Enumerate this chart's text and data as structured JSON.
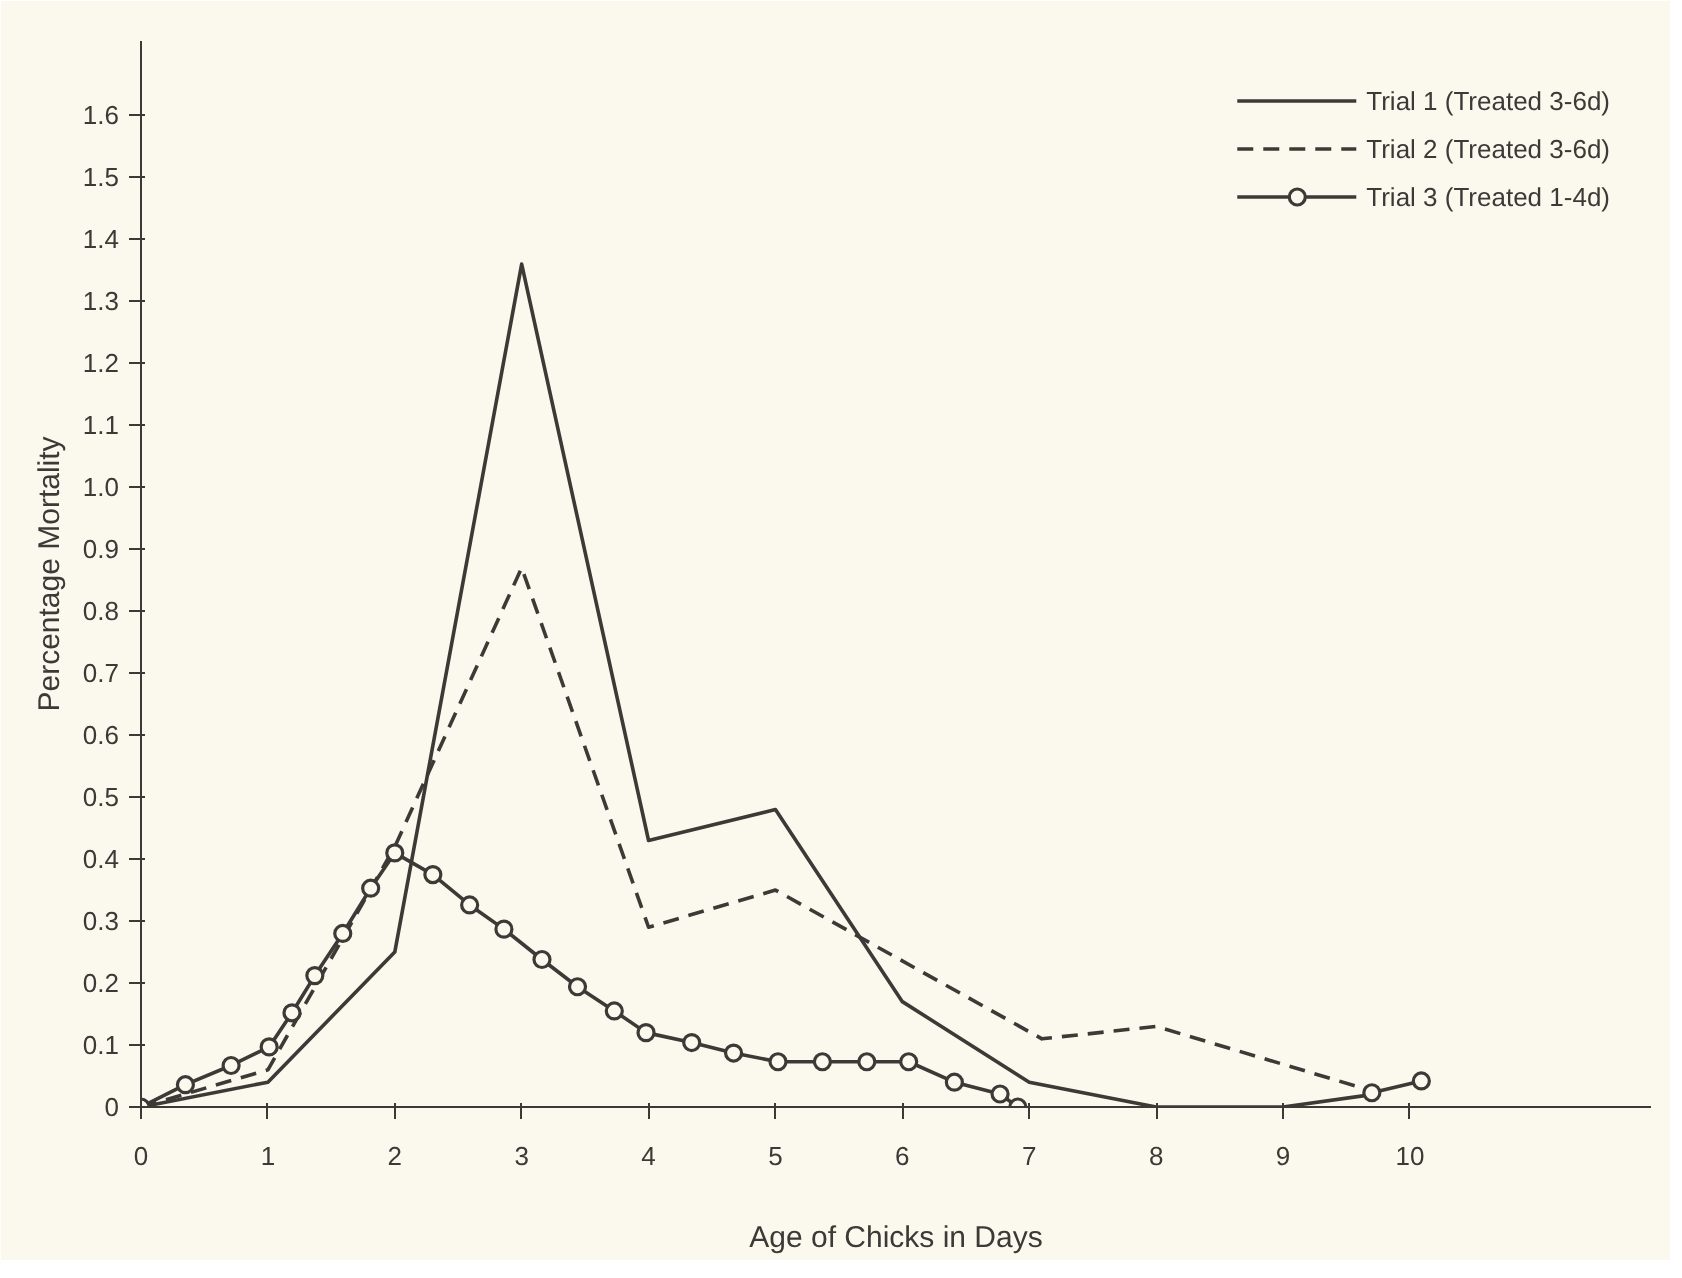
{
  "chart_data": {
    "type": "line",
    "xlabel": "Age of Chicks in Days",
    "ylabel": "Percentage Mortality",
    "xlim": [
      0,
      11.9
    ],
    "ylim": [
      0,
      1.72
    ],
    "xticks": [
      0,
      1,
      2,
      3,
      4,
      5,
      6,
      7,
      8,
      9,
      10
    ],
    "yticks": [
      0,
      0.1,
      0.2,
      0.3,
      0.4,
      0.5,
      0.6,
      0.7,
      0.8,
      0.9,
      {
        "value": 1.0,
        "label": "1.0"
      },
      1.1,
      1.2,
      1.3,
      1.4,
      1.5,
      1.6
    ],
    "grid": false,
    "legend": "top right",
    "series": [
      {
        "name": "Trial 1 (Treated 3-6d)",
        "color": "#3c3a36",
        "line_style": "solid",
        "marker": "none",
        "x": [
          0,
          1,
          2,
          3,
          4,
          5,
          6,
          7,
          8,
          9,
          9.7
        ],
        "values": [
          0,
          0.04,
          0.25,
          1.36,
          0.43,
          0.48,
          0.17,
          0.04,
          0,
          0,
          0.02
        ]
      },
      {
        "name": "Trial 2 (Treated 3-6d)",
        "color": "#3c3a36",
        "line_style": "dashed",
        "marker": "none",
        "x": [
          0,
          1,
          2,
          3,
          4,
          5,
          7.1,
          8,
          9.8
        ],
        "values": [
          0,
          0.06,
          0.42,
          0.87,
          0.29,
          0.35,
          0.11,
          0.13,
          0.02
        ]
      },
      {
        "name": "Trial 3 (Treated 1-4d)",
        "color": "#3c3a36",
        "line_style": "solid",
        "marker": "circle",
        "x": [
          0,
          0.35,
          0.71,
          1.01,
          1.19,
          1.37,
          1.59,
          1.81,
          2.0,
          2.3,
          2.59,
          2.86,
          3.16,
          3.44,
          3.73,
          3.98,
          4.34,
          4.67,
          5.02,
          5.37,
          5.72,
          6.05,
          6.41,
          6.77,
          6.91,
          8.3,
          9.7,
          10.09
        ],
        "values": [
          0,
          0.036,
          0.067,
          0.097,
          0.152,
          0.212,
          0.28,
          0.353,
          0.41,
          0.375,
          0.326,
          0.287,
          0.238,
          0.194,
          0.155,
          0.12,
          0.104,
          0.087,
          0.073,
          0.073,
          0.073,
          0.073,
          0.04,
          0.021,
          0,
          null,
          0.023,
          0.042
        ]
      }
    ]
  }
}
